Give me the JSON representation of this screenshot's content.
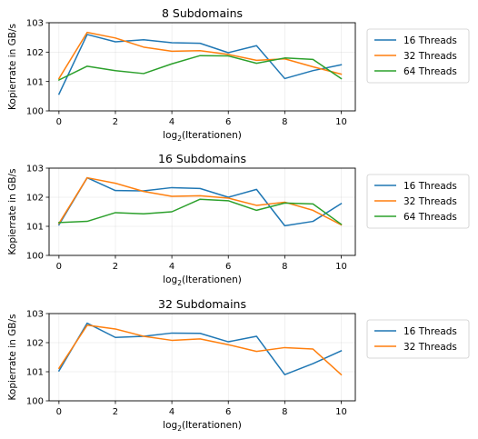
{
  "colors": {
    "16 Threads": "#1f77b4",
    "32 Threads": "#ff7f0e",
    "64 Threads": "#2ca02c"
  },
  "chart_data": [
    {
      "type": "line",
      "title": "8 Subdomains",
      "xlabel_base": "log",
      "xlabel_sub": "2",
      "xlabel_rest": "(Iterationen)",
      "ylabel": "Kopierrate in GB/s",
      "xlim": [
        -0.35,
        10.5
      ],
      "ylim": [
        100,
        103
      ],
      "xticks": [
        0,
        2,
        4,
        6,
        8,
        10
      ],
      "yticks": [
        100,
        101,
        102,
        103
      ],
      "grid": true,
      "legend": "outside-right",
      "x": [
        0,
        1,
        2,
        3,
        4,
        5,
        6,
        7,
        8,
        9,
        10
      ],
      "series": [
        {
          "name": "16 Threads",
          "values": [
            100.57,
            102.6,
            102.35,
            102.42,
            102.32,
            102.3,
            101.98,
            102.22,
            101.1,
            101.37,
            101.57
          ]
        },
        {
          "name": "32 Threads",
          "values": [
            101.1,
            102.67,
            102.48,
            102.17,
            102.03,
            102.05,
            101.92,
            101.72,
            101.77,
            101.5,
            101.25
          ]
        },
        {
          "name": "64 Threads",
          "values": [
            101.05,
            101.52,
            101.37,
            101.27,
            101.6,
            101.88,
            101.87,
            101.62,
            101.8,
            101.75,
            101.1
          ]
        }
      ]
    },
    {
      "type": "line",
      "title": "16 Subdomains",
      "xlabel_base": "log",
      "xlabel_sub": "2",
      "xlabel_rest": "(Iterationen)",
      "ylabel": "Kopierrate in GB/s",
      "xlim": [
        -0.35,
        10.5
      ],
      "ylim": [
        100,
        103
      ],
      "xticks": [
        0,
        2,
        4,
        6,
        8,
        10
      ],
      "yticks": [
        100,
        101,
        102,
        103
      ],
      "grid": true,
      "legend": "outside-right",
      "x": [
        0,
        1,
        2,
        3,
        4,
        5,
        6,
        7,
        8,
        9,
        10
      ],
      "series": [
        {
          "name": "16 Threads",
          "values": [
            101.05,
            102.67,
            102.23,
            102.22,
            102.33,
            102.3,
            102.0,
            102.27,
            101.02,
            101.17,
            101.78
          ]
        },
        {
          "name": "32 Threads",
          "values": [
            101.1,
            102.67,
            102.48,
            102.2,
            102.03,
            102.05,
            101.97,
            101.72,
            101.83,
            101.55,
            101.05
          ]
        },
        {
          "name": "64 Threads",
          "values": [
            101.13,
            101.17,
            101.47,
            101.43,
            101.5,
            101.93,
            101.88,
            101.55,
            101.8,
            101.77,
            101.07
          ]
        }
      ]
    },
    {
      "type": "line",
      "title": "32 Subdomains",
      "xlabel_base": "log",
      "xlabel_sub": "2",
      "xlabel_rest": "(Iterationen)",
      "ylabel": "Kopierrate in GB/s",
      "xlim": [
        -0.35,
        10.5
      ],
      "ylim": [
        100,
        103
      ],
      "xticks": [
        0,
        2,
        4,
        6,
        8,
        10
      ],
      "yticks": [
        100,
        101,
        102,
        103
      ],
      "grid": true,
      "legend": "outside-right",
      "x": [
        0,
        1,
        2,
        3,
        4,
        5,
        6,
        7,
        8,
        9,
        10
      ],
      "series": [
        {
          "name": "16 Threads",
          "values": [
            101.03,
            102.67,
            102.18,
            102.22,
            102.33,
            102.32,
            102.03,
            102.22,
            100.9,
            101.28,
            101.72
          ]
        },
        {
          "name": "32 Threads",
          "values": [
            101.12,
            102.6,
            102.47,
            102.22,
            102.08,
            102.13,
            101.93,
            101.7,
            101.83,
            101.78,
            100.9
          ]
        }
      ]
    }
  ]
}
